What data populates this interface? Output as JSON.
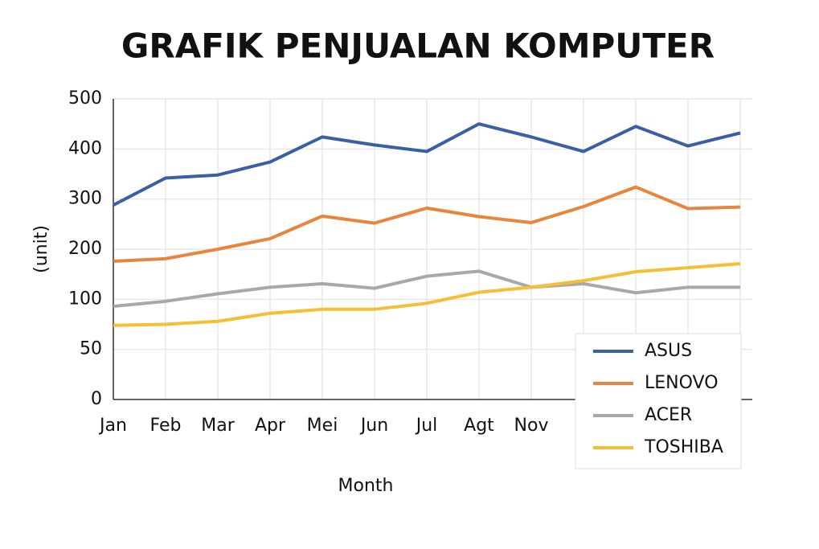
{
  "chart_data": {
    "type": "line",
    "title": "GRAFIK PENJUALAN KOMPUTER",
    "x_label": "Month",
    "y_label": "(unit)",
    "categories": [
      "Jan",
      "Feb",
      "Mar",
      "Apr",
      "Mei",
      "Jun",
      "Jul",
      "Agt",
      "Nov",
      null,
      null,
      null,
      null
    ],
    "series": [
      {
        "name": "ASUS",
        "color": "#3a5fa5",
        "values": [
          288,
          342,
          348,
          374,
          424,
          408,
          395,
          450,
          424,
          395,
          445,
          406,
          432
        ]
      },
      {
        "name": "LENOVO",
        "color": "#e8843c",
        "values": [
          176,
          181,
          200,
          221,
          266,
          252,
          282,
          265,
          253,
          285,
          324,
          281,
          284
        ]
      },
      {
        "name": "ACER",
        "color": "#a8a8a8",
        "values": [
          93,
          98,
          111,
          124,
          131,
          122,
          146,
          156,
          124,
          131,
          113,
          124,
          124
        ]
      },
      {
        "name": "TOSHIBA",
        "color": "#f2c030",
        "values": [
          74,
          75,
          78,
          86,
          90,
          90,
          96,
          114,
          124,
          137,
          155,
          163,
          171
        ]
      }
    ],
    "ylim": [
      0,
      500
    ],
    "yticks": [
      0,
      50,
      100,
      200,
      300,
      400,
      500
    ],
    "grid": true,
    "legend": "lower right"
  }
}
